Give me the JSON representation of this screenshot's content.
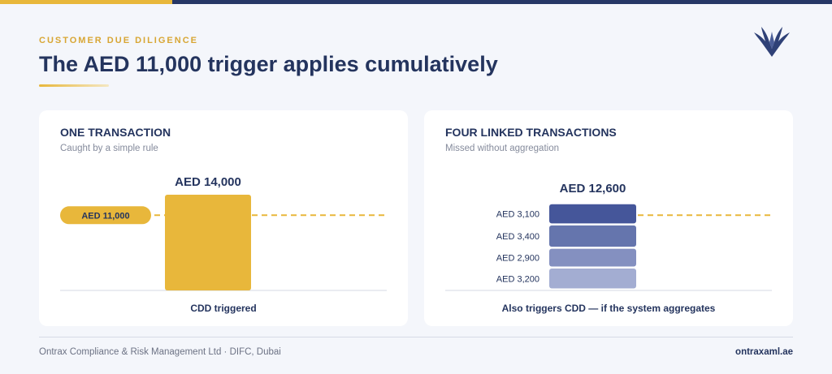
{
  "header": {
    "eyebrow": "CUSTOMER DUE DILIGENCE",
    "title": "The AED 11,000 trigger applies cumulatively"
  },
  "colors": {
    "gold": "#e8b73b",
    "navy": "#263766",
    "segments": [
      "#45569a",
      "#6575ad",
      "#8490c0",
      "#a3add2"
    ]
  },
  "chart_data": [
    {
      "type": "bar",
      "title": "ONE TRANSACTION",
      "subtitle": "Caught by a simple rule",
      "caption": "CDD triggered",
      "threshold": {
        "value": 11000,
        "label": "AED 11,000"
      },
      "total_label": "AED 14,000",
      "values": [
        14000
      ],
      "ylim": [
        0,
        15000
      ]
    },
    {
      "type": "bar",
      "stacked": true,
      "title": "FOUR LINKED TRANSACTIONS",
      "subtitle": "Missed without aggregation",
      "caption": "Also triggers CDD — if the system aggregates",
      "threshold": {
        "value": 11000
      },
      "total_label": "AED 12,600",
      "segments": [
        {
          "value": 3200,
          "label": "AED 3,200"
        },
        {
          "value": 2900,
          "label": "AED 2,900"
        },
        {
          "value": 3400,
          "label": "AED 3,400"
        },
        {
          "value": 3100,
          "label": "AED 3,100"
        }
      ],
      "ylim": [
        0,
        15000
      ]
    }
  ],
  "footer": {
    "company": "Ontrax Compliance & Risk Management Ltd · DIFC, Dubai",
    "website": "ontraxaml.ae"
  }
}
